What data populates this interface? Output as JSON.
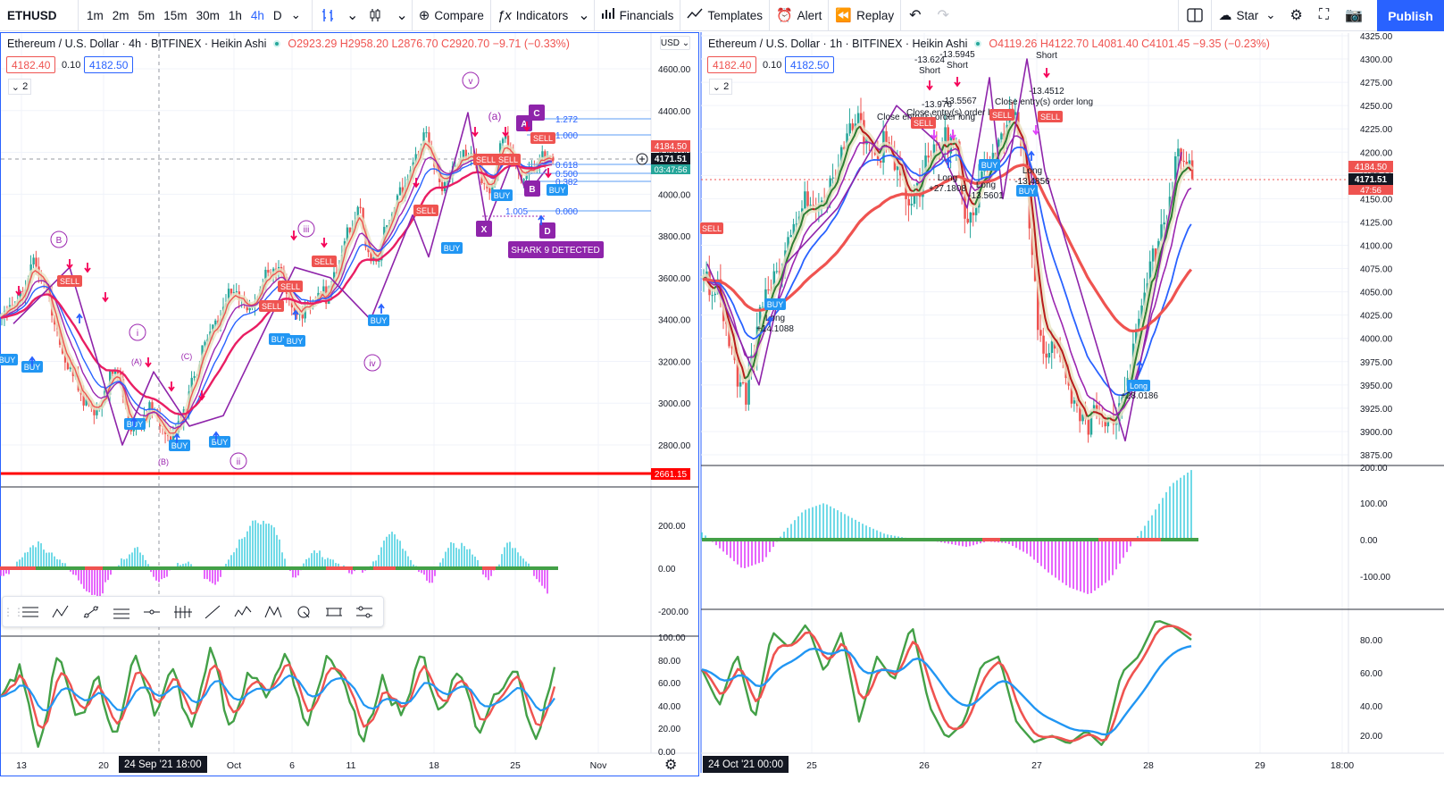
{
  "toolbar": {
    "symbol": "ETHUSD",
    "intervals": [
      "1m",
      "2m",
      "5m",
      "15m",
      "30m",
      "1h",
      "4h",
      "D"
    ],
    "active_interval": "4h",
    "compare": "Compare",
    "indicators": "Indicators",
    "financials": "Financials",
    "templates": "Templates",
    "alert": "Alert",
    "replay": "Replay",
    "star": "Star",
    "publish": "Publish"
  },
  "left": {
    "title": "Ethereum / U.S. Dollar · 4h · BITFINEX · Heikin Ashi",
    "ohlc": "O2923.29 H2958.20 L2876.70 C2920.70 −9.71 (−0.33%)",
    "bid": "4182.40",
    "spread": "0.10",
    "ask": "4182.50",
    "collapse": "2",
    "currency": "USD",
    "price_labels": [
      "4600.00",
      "4400.00",
      "4200.00",
      "4000.00",
      "3800.00",
      "3600.00",
      "3400.00",
      "3200.00",
      "3000.00",
      "2800.00"
    ],
    "price_values": [
      4600,
      4400,
      4200,
      4000,
      3800,
      3600,
      3400,
      3200,
      3000,
      2800
    ],
    "tag_high": "4184.50",
    "tag_last": "4171.51",
    "tag_countdown": "03:47:56",
    "tag_support": "2661.15",
    "macd_labels": [
      "200.00",
      "0.00",
      "-200.00"
    ],
    "rsi_labels": [
      "100.00",
      "80.00",
      "60.00",
      "40.00",
      "20.00",
      "0.00"
    ],
    "time_labels": [
      "13",
      "20",
      "Oct",
      "6",
      "11",
      "18",
      "25",
      "Nov"
    ],
    "cursor_date": "24 Sep '21   18:00",
    "fib_labels": [
      "1.272",
      "1.000",
      "0.618",
      "0.500",
      "0.382",
      "0.000"
    ],
    "annotations": {
      "wave_v": "v",
      "wave_iii": "iii",
      "wave_i": "i",
      "wave_ii": "ii",
      "wave_iv": "iv",
      "wave_b_circ": "B",
      "wave_a": "(a)",
      "wave_A": "(A)",
      "wave_B": "(B)",
      "wave_C": "(C)",
      "shark": "SHARK 9 DETECTED",
      "pt_A": "A",
      "pt_B": "B",
      "pt_C": "C",
      "pt_D": "D",
      "pt_X": "X",
      "harm_ratio": "1.005",
      "sell": "SELL",
      "buy": "BUY"
    }
  },
  "right": {
    "title": "Ethereum / U.S. Dollar · 1h · BITFINEX · Heikin Ashi",
    "ohlc": "O4119.26 H4122.70 L4081.40 C4101.45 −9.35 (−0.23%)",
    "bid": "4182.40",
    "spread": "0.10",
    "ask": "4182.50",
    "collapse": "2",
    "price_labels": [
      "4325.00",
      "4300.00",
      "4275.00",
      "4250.00",
      "4225.00",
      "4200.00",
      "4175.00",
      "4150.00",
      "4125.00",
      "4100.00",
      "4075.00",
      "4050.00",
      "4025.00",
      "4000.00",
      "3975.00",
      "3950.00",
      "3925.00",
      "3900.00",
      "3875.00"
    ],
    "price_values": [
      4325,
      4300,
      4275,
      4250,
      4225,
      4200,
      4175,
      4150,
      4125,
      4100,
      4075,
      4050,
      4025,
      4000,
      3975,
      3950,
      3925,
      3900,
      3875
    ],
    "tag_high": "4184.50",
    "tag_last": "4171.51",
    "tag_countdown": "47:56",
    "macd_labels": [
      "200.00",
      "100.00",
      "0.00",
      "-100.00"
    ],
    "rsi_labels": [
      "80.00",
      "60.00",
      "40.00",
      "20.00"
    ],
    "time_labels": [
      "25",
      "26",
      "27",
      "28",
      "29",
      "18:00"
    ],
    "cursor_date": "24 Oct '21   00:00",
    "annotations": {
      "short1": "-13.624",
      "short1b": "Short",
      "short2": "-13.5945",
      "short2b": "Short",
      "short3": "Short",
      "v1": "-13.976",
      "v2": "-13.5567",
      "v3": "-13.4512",
      "close1": "Close entry(s) order long",
      "close2": "Close entry(s) order long",
      "close3": "Close entry(s) order long",
      "long1": "Long",
      "long1v": "+14.1088",
      "long2": "Long",
      "long2v": "+27.1808",
      "long3": "Long",
      "long3v": "-13.5601",
      "long4": "Long",
      "long4v": "-13.4856",
      "long5": "Long",
      "long5v": "+28.0186",
      "sell": "SELL",
      "buy": "BUY"
    }
  },
  "colors": {
    "up": "#26a69a",
    "down": "#ef5350",
    "accent": "#2962ff",
    "purple": "#9c27b0",
    "ema_red": "#ef5350",
    "ema_blue": "#2962ff",
    "ema_pink": "#e91e63",
    "macd_up": "#4dd0e1",
    "macd_dn": "#e040fb"
  }
}
